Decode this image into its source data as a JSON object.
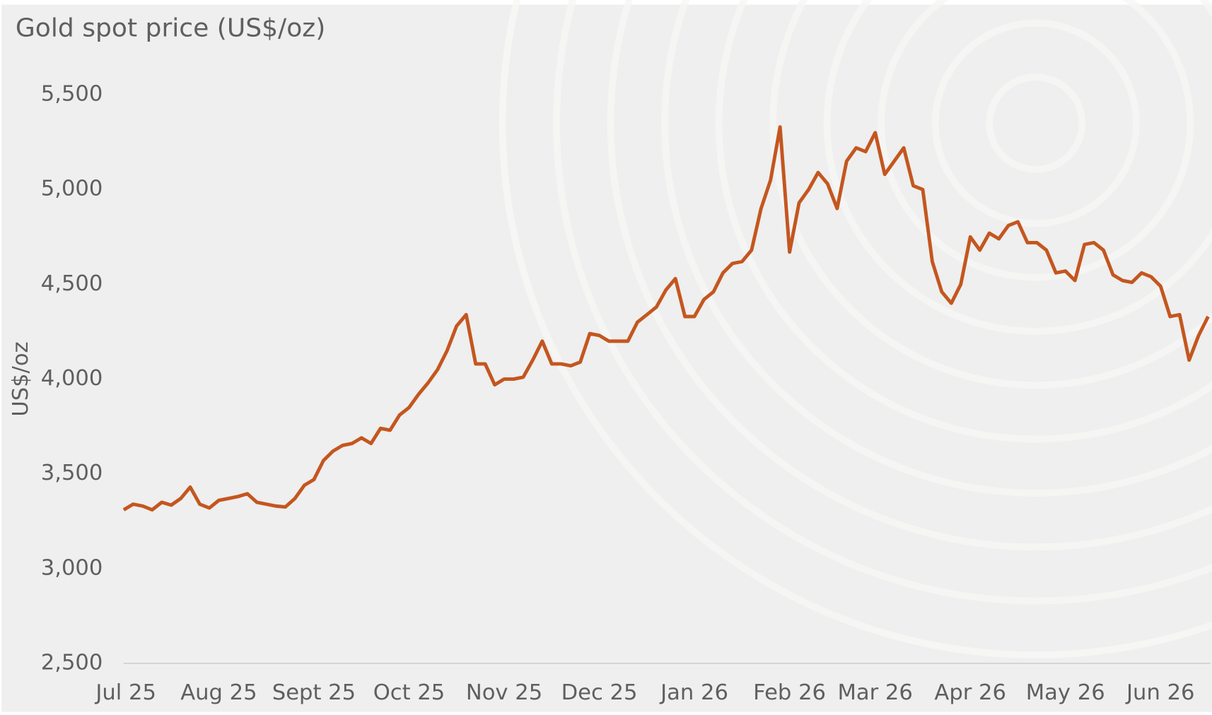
{
  "chart_data": {
    "type": "line",
    "title": "Gold spot price (US$/oz)",
    "y_label": "US$/oz",
    "color": "#c4561f",
    "categories": [
      "Jul 25",
      null,
      null,
      null,
      null,
      null,
      null,
      null,
      null,
      null,
      "Aug 25",
      null,
      null,
      null,
      null,
      null,
      null,
      null,
      null,
      null,
      "Sept 25",
      null,
      null,
      null,
      null,
      null,
      null,
      null,
      null,
      null,
      "Oct 25",
      null,
      null,
      null,
      null,
      null,
      null,
      null,
      null,
      null,
      "Nov 25",
      null,
      null,
      null,
      null,
      null,
      null,
      null,
      null,
      null,
      "Dec 25",
      null,
      null,
      null,
      null,
      null,
      null,
      null,
      null,
      null,
      "Jan 26",
      null,
      null,
      null,
      null,
      null,
      null,
      null,
      null,
      null,
      "Feb 26",
      null,
      null,
      null,
      null,
      null,
      null,
      null,
      null,
      "Mar 26",
      null,
      null,
      null,
      null,
      null,
      null,
      null,
      null,
      null,
      "Apr 26",
      null,
      null,
      null,
      null,
      null,
      null,
      null,
      null,
      null,
      "May 26",
      null,
      null,
      null,
      null,
      null,
      null,
      null,
      null,
      null,
      "Jun 26",
      null,
      null,
      null,
      null,
      null
    ],
    "values": [
      3310,
      3340,
      3330,
      3310,
      3350,
      3335,
      3370,
      3430,
      3340,
      3320,
      3360,
      3370,
      3380,
      3395,
      3350,
      3340,
      3330,
      3325,
      3370,
      3440,
      3470,
      3570,
      3620,
      3650,
      3660,
      3690,
      3660,
      3740,
      3730,
      3810,
      3850,
      3920,
      3980,
      4050,
      4150,
      4280,
      4340,
      4080,
      4080,
      3970,
      4000,
      4000,
      4010,
      4100,
      4200,
      4080,
      4080,
      4070,
      4090,
      4240,
      4230,
      4200,
      4200,
      4200,
      4300,
      4340,
      4380,
      4470,
      4530,
      4330,
      4330,
      4420,
      4460,
      4560,
      4610,
      4620,
      4680,
      4900,
      5050,
      5330,
      4670,
      4930,
      5000,
      5090,
      5030,
      4900,
      5150,
      5220,
      5200,
      5300,
      5080,
      5150,
      5220,
      5020,
      5000,
      4620,
      4460,
      4400,
      4500,
      4750,
      4680,
      4770,
      4740,
      4810,
      4830,
      4720,
      4720,
      4680,
      4560,
      4570,
      4520,
      4710,
      4720,
      4680,
      4550,
      4520,
      4510,
      4560,
      4540,
      4490,
      4330,
      4340,
      4100,
      4230,
      4330
    ],
    "ylim": [
      2500,
      5500
    ],
    "yticks": [
      {
        "value": 2500,
        "label": "2,500"
      },
      {
        "value": 3000,
        "label": "3,000"
      },
      {
        "value": 3500,
        "label": "3,500"
      },
      {
        "value": 4000,
        "label": "4,000"
      },
      {
        "value": 4500,
        "label": "4,500"
      },
      {
        "value": 5000,
        "label": "5,000"
      },
      {
        "value": 5500,
        "label": "5,500"
      }
    ],
    "grid": false
  }
}
